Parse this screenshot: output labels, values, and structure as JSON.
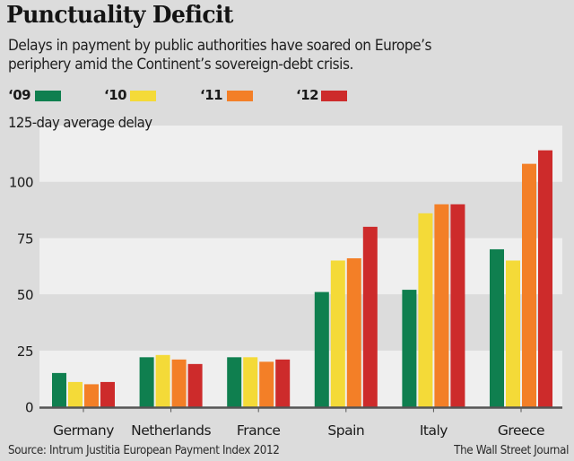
{
  "title": "Punctuality Deficit",
  "subtitle_line1": "Delays in payment by public authorities have soared on Europe’s",
  "subtitle_line2": "periphery amid the Continent’s sovereign-debt crisis.",
  "unit_label": "125-day average delay",
  "source": "Source: Intrum Justitia European Payment Index 2012",
  "credit": "The Wall Street Journal",
  "colors": {
    "background": "#dcdcdc",
    "plot_light": "#efefef",
    "plot_dark": "#dcdcdc",
    "axis": "#555555"
  },
  "chart_data": {
    "type": "bar",
    "title": "Punctuality Deficit",
    "xlabel": "",
    "ylabel": "125-day average delay",
    "ylim": [
      0,
      125
    ],
    "yticks": [
      0,
      25,
      50,
      75,
      100
    ],
    "ytick_labels": [
      "0",
      "25",
      "50",
      "75",
      "100"
    ],
    "grid": "alternating horizontal bands",
    "legend_position": "top-left",
    "categories": [
      "Germany",
      "Netherlands",
      "France",
      "Spain",
      "Italy",
      "Greece"
    ],
    "series": [
      {
        "name": "‘09",
        "color": "#0f7f4f",
        "values": [
          15,
          22,
          22,
          51,
          52,
          70
        ]
      },
      {
        "name": "‘10",
        "color": "#f4da38",
        "values": [
          11,
          23,
          22,
          65,
          86,
          65
        ]
      },
      {
        "name": "‘11",
        "color": "#f37f27",
        "values": [
          10,
          21,
          20,
          66,
          90,
          108
        ]
      },
      {
        "name": "‘12",
        "color": "#cd2b2b",
        "values": [
          11,
          19,
          21,
          80,
          90,
          114
        ]
      }
    ]
  }
}
